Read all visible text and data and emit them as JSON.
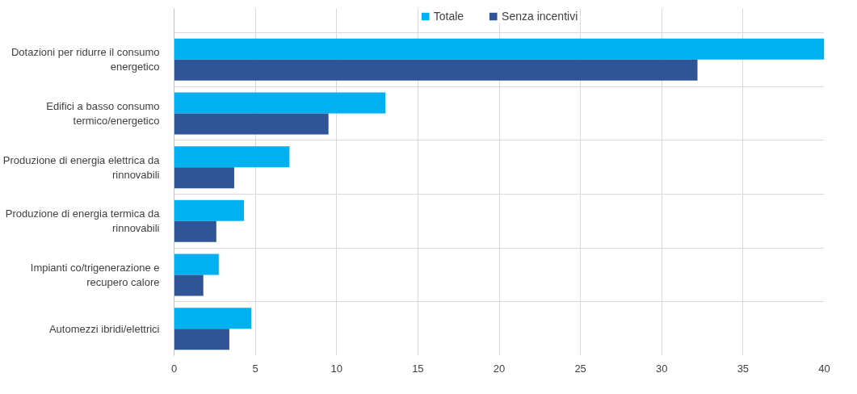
{
  "chart_data": {
    "type": "bar",
    "orientation": "horizontal",
    "categories": [
      "Dotazioni per ridurre il consumo energetico",
      "Edifici a basso consumo termico/energetico",
      "Produzione di energia elettrica da rinnovabili",
      "Produzione di energia termica da rinnovabili",
      "Impianti co/trigenerazione e recupero calore",
      "Automezzi ibridi/elettrici"
    ],
    "series": [
      {
        "name": "Totale",
        "color": "#00b0f0",
        "values": [
          40,
          13,
          7.1,
          4.3,
          2.75,
          4.75
        ]
      },
      {
        "name": "Senza incentivi",
        "color": "#2f5597",
        "values": [
          32.2,
          9.5,
          3.7,
          2.6,
          1.8,
          3.4
        ]
      }
    ],
    "xlim": [
      0,
      40
    ],
    "xticks": [
      0,
      5,
      10,
      15,
      20,
      25,
      30,
      35,
      40
    ],
    "grid": true,
    "legend": "top"
  }
}
